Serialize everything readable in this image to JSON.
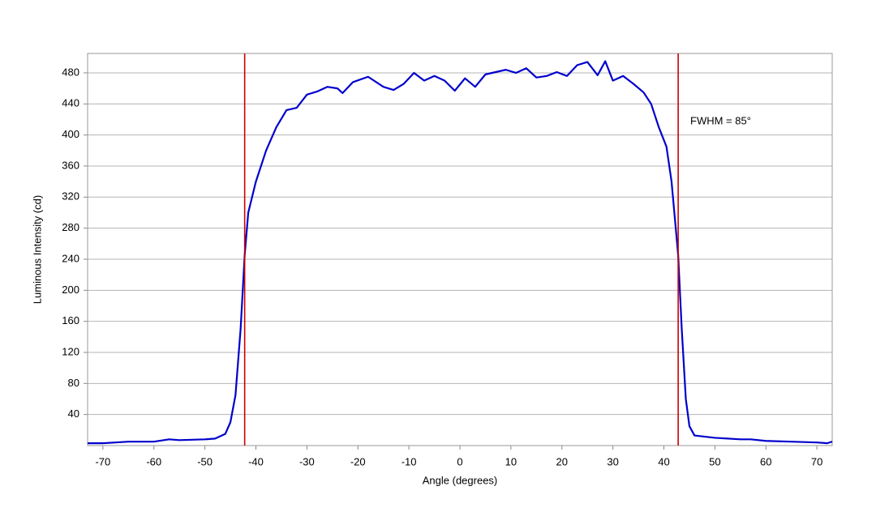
{
  "chart_data": {
    "type": "line",
    "x_label": "Angle (degrees)",
    "y_label": "Luminous Intensity (cd)",
    "annotation": "FWHM = 85°",
    "series": [
      {
        "color": "#0000cc",
        "x": [
          -73,
          -70,
          -65,
          -60,
          -57,
          -55,
          -50,
          -48,
          -46,
          -45,
          -44,
          -43,
          -42.2,
          -41.5,
          -40,
          -38,
          -36,
          -34,
          -32,
          -30,
          -28,
          -26,
          -24,
          -23,
          -21,
          -18,
          -15,
          -13,
          -11,
          -9,
          -7,
          -5,
          -3,
          -1,
          1,
          3,
          5,
          7,
          9,
          11,
          13,
          15,
          17,
          19,
          21,
          23,
          25,
          27,
          28.5,
          30,
          32,
          34,
          36,
          37.5,
          39,
          40.5,
          41.5,
          42.8,
          43.5,
          44.3,
          45,
          46,
          50,
          55,
          57,
          60,
          65,
          70,
          72,
          73
        ],
        "values": [
          3,
          3,
          5,
          5,
          8,
          7,
          8,
          9,
          15,
          30,
          65,
          150,
          245,
          300,
          340,
          380,
          410,
          432,
          435,
          452,
          456,
          462,
          460,
          454,
          468,
          475,
          462,
          458,
          466,
          480,
          470,
          476,
          470,
          457,
          473,
          462,
          478,
          481,
          484,
          480,
          486,
          474,
          476,
          481,
          476,
          490,
          494,
          477,
          495,
          470,
          476,
          466,
          455,
          440,
          410,
          385,
          340,
          245,
          150,
          60,
          25,
          13,
          10,
          8,
          8,
          6,
          5,
          4,
          3,
          5
        ]
      }
    ],
    "vlines": [
      -42.2,
      42.8
    ],
    "vline_color": "#cc0000",
    "xlim": [
      -73,
      73
    ],
    "xticks": [
      -70,
      -60,
      -50,
      -40,
      -30,
      -20,
      -10,
      0,
      10,
      20,
      30,
      40,
      50,
      60,
      70
    ],
    "ylim": [
      0,
      505
    ],
    "yticks": [
      40,
      80,
      120,
      160,
      200,
      240,
      280,
      320,
      360,
      400,
      440,
      480
    ],
    "grid": true
  }
}
